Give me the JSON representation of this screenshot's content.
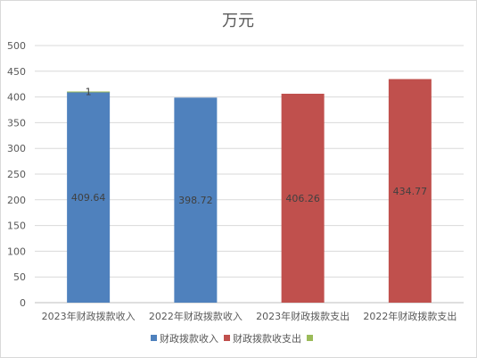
{
  "chart_data": {
    "type": "bar",
    "title": "万元",
    "xlabel": "",
    "ylabel": "",
    "ylim": [
      0,
      500
    ],
    "yticks": [
      0,
      50,
      100,
      150,
      200,
      250,
      300,
      350,
      400,
      450,
      500
    ],
    "grid": true,
    "categories": [
      "2023年财政拨款收入",
      "2022年财政拨款收入",
      "2023年财政拨款支出",
      "2022年财政拨款支出"
    ],
    "bars": [
      {
        "category": "2023年财政拨款收入",
        "series": "财政拨款收入",
        "value": 409.64,
        "label": "409.64"
      },
      {
        "category": "2023年财政拨款收入",
        "series": "",
        "value": 1,
        "label": "1",
        "stacked": true
      },
      {
        "category": "2022年财政拨款收入",
        "series": "财政拨款收入",
        "value": 398.72,
        "label": "398.72"
      },
      {
        "category": "2023年财政拨款支出",
        "series": "财政拨款收支出",
        "value": 406.26,
        "label": "406.26"
      },
      {
        "category": "2022年财政拨款支出",
        "series": "财政拨款收支出",
        "value": 434.77,
        "label": "434.77"
      }
    ],
    "legend": {
      "position": "bottom",
      "entries": [
        {
          "name": "财政拨款收入",
          "color": "#4f81bd"
        },
        {
          "name": "财政拨款收支出",
          "color": "#c0504d"
        },
        {
          "name": "",
          "color": "#9bbb59"
        }
      ]
    },
    "colors": {
      "财政拨款收入": "#4f81bd",
      "财政拨款收支出": "#c0504d",
      "": "#9bbb59"
    }
  }
}
